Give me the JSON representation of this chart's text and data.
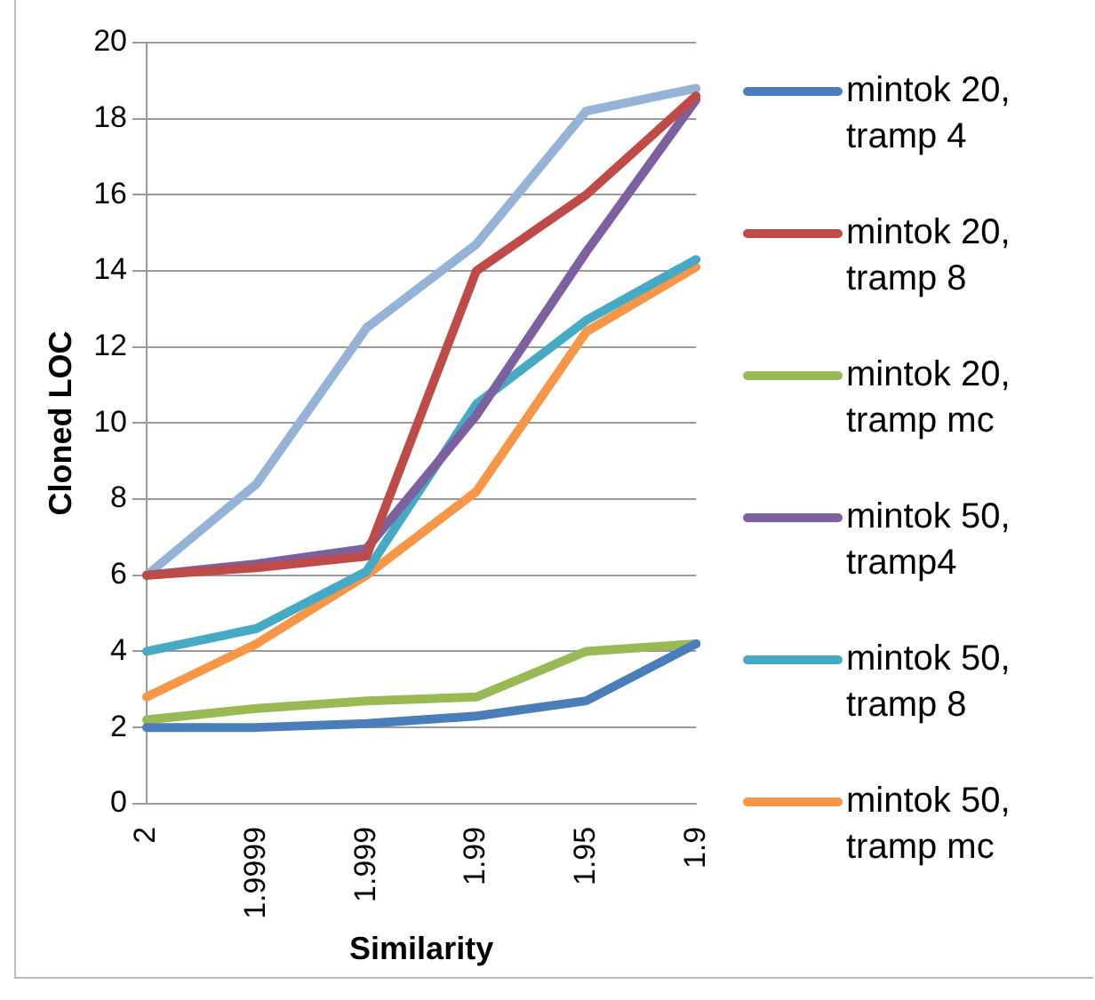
{
  "chart_data": {
    "type": "line",
    "xlabel": "Similarity",
    "ylabel": "Cloned LOC",
    "categories": [
      "2",
      "1.9999",
      "1.999",
      "1.99",
      "1.95",
      "1.9"
    ],
    "ylim": [
      0,
      20
    ],
    "yticks": [
      0,
      2,
      4,
      6,
      8,
      10,
      12,
      14,
      16,
      18,
      20
    ],
    "grid": "y",
    "legend": "right",
    "marker": "none",
    "series": [
      {
        "name": "mintok 20, tramp 4",
        "color": "#4a7ebb",
        "values": [
          2,
          2,
          2.1,
          2.3,
          2.7,
          4.2
        ]
      },
      {
        "name": "mintok 20, tramp 8",
        "color": "#be4b48",
        "values": [
          6,
          6.2,
          6.5,
          14,
          16,
          18.6
        ]
      },
      {
        "name": "mintok 20, tramp mc",
        "color": "#98b954",
        "values": [
          2.2,
          2.5,
          2.7,
          2.8,
          4,
          4.2
        ]
      },
      {
        "name": "mintok 50, tramp4",
        "color": "#7d60a0",
        "values": [
          6,
          6.3,
          6.7,
          10.2,
          14.5,
          18.5
        ]
      },
      {
        "name": "mintok 50, tramp 8",
        "color": "#46aac5",
        "values": [
          4,
          4.6,
          6.1,
          10.5,
          12.7,
          14.3
        ]
      },
      {
        "name": "mintok 50, tramp mc",
        "color": "#f79646",
        "values": [
          2.8,
          4.2,
          6,
          8.2,
          12.4,
          14.1
        ]
      },
      {
        "color": "#95b3d7",
        "values": [
          6,
          8.4,
          12.5,
          14.7,
          18.2,
          18.8
        ]
      }
    ]
  }
}
